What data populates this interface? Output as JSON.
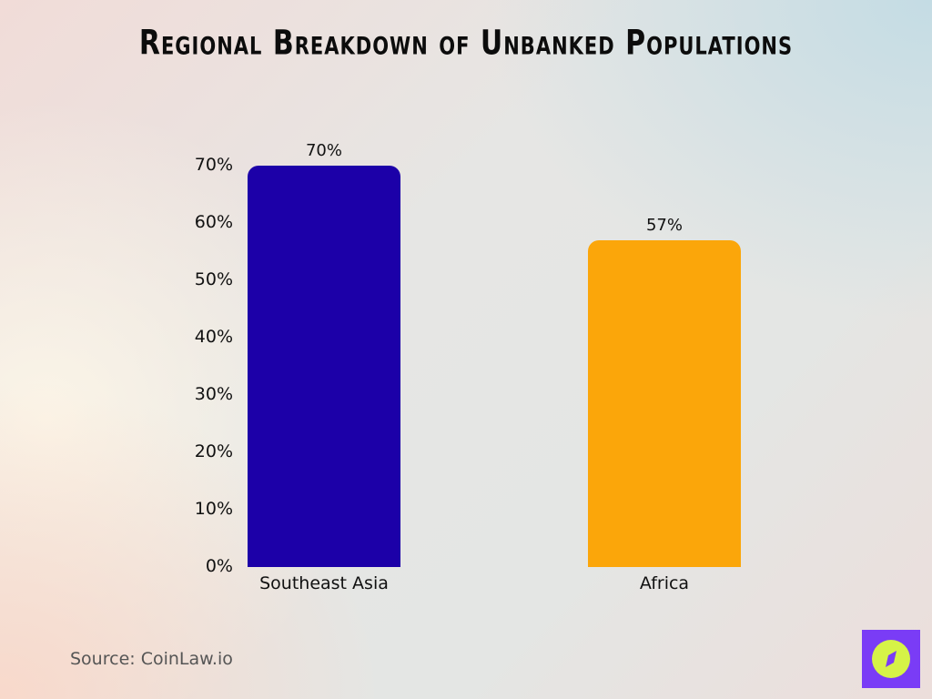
{
  "title": "Regional Breakdown of Unbanked Populations",
  "source": "Source: CoinLaw.io",
  "y_ticks": [
    "0%",
    "10%",
    "20%",
    "30%",
    "40%",
    "50%",
    "60%",
    "70%"
  ],
  "bars": [
    {
      "label": "Southeast Asia",
      "value": 70,
      "value_label": "70%",
      "color": "#1c00a8"
    },
    {
      "label": "Africa",
      "value": 57,
      "value_label": "57%",
      "color": "#fba60a"
    }
  ],
  "logo": {
    "icon": "compass-icon",
    "bg": "#7a3cf6",
    "fg": "#d6f347"
  },
  "chart_data": {
    "type": "bar",
    "title": "Regional Breakdown of Unbanked Populations",
    "categories": [
      "Southeast Asia",
      "Africa"
    ],
    "values": [
      70,
      57
    ],
    "value_labels": [
      "70%",
      "57%"
    ],
    "xlabel": "",
    "ylabel": "",
    "ylim": [
      0,
      70
    ],
    "yticks": [
      "0%",
      "10%",
      "20%",
      "30%",
      "40%",
      "50%",
      "60%",
      "70%"
    ],
    "grid": false,
    "legend": "none",
    "colors": [
      "#1c00a8",
      "#fba60a"
    ],
    "source": "Source: CoinLaw.io"
  }
}
